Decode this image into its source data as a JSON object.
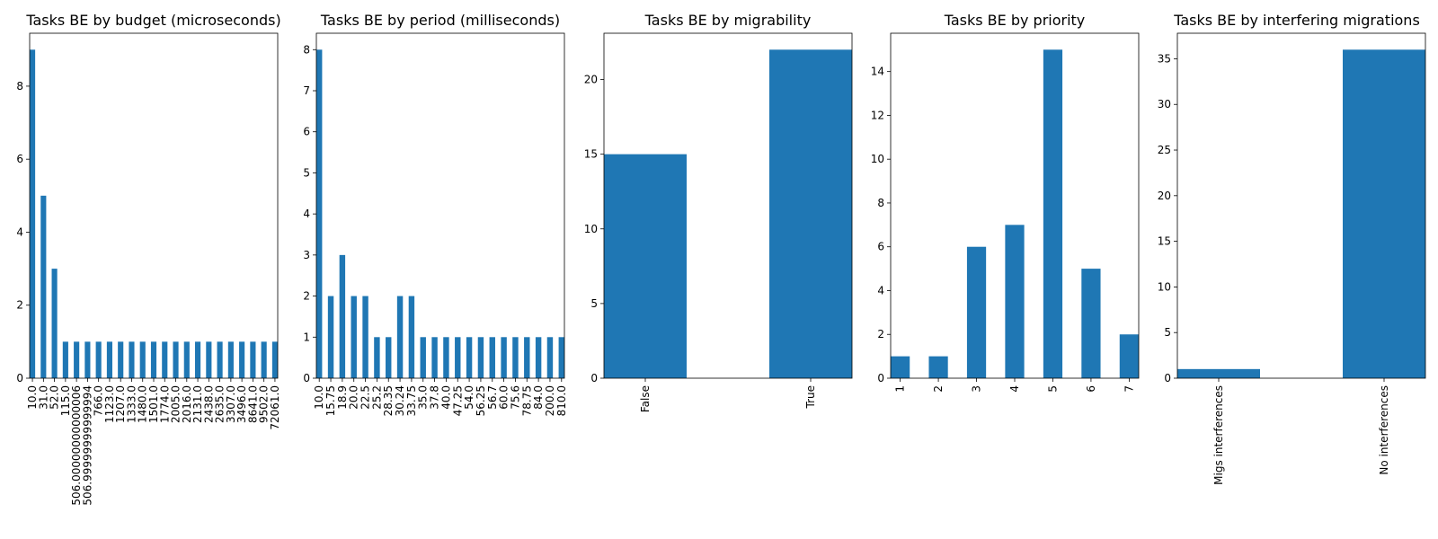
{
  "bar_color": "#1f77b4",
  "chart_data": [
    {
      "type": "bar",
      "title": "Tasks BE by budget (microseconds)",
      "categories": [
        "10.0",
        "31.0",
        "52.0",
        "115.0",
        "506.00000000000006",
        "506.99999999999994",
        "766.0",
        "1123.0",
        "1207.0",
        "1333.0",
        "1480.0",
        "1501.0",
        "1774.0",
        "2005.0",
        "2016.0",
        "2131.0",
        "2438.0",
        "2635.0",
        "3307.0",
        "3496.0",
        "8641.0",
        "9502.0",
        "72061.0"
      ],
      "values": [
        9,
        5,
        3,
        1,
        1,
        1,
        1,
        1,
        1,
        1,
        1,
        1,
        1,
        1,
        1,
        1,
        1,
        1,
        1,
        1,
        1,
        1,
        1
      ],
      "ylim": [
        0,
        9.45
      ],
      "yticks": [
        0,
        2,
        4,
        6,
        8
      ],
      "ytick_labels": [
        "0",
        "2",
        "4",
        "6",
        "8"
      ],
      "xlabel": "",
      "ylabel": ""
    },
    {
      "type": "bar",
      "title": "Tasks BE by period (milliseconds)",
      "categories": [
        "10.0",
        "15.75",
        "18.9",
        "20.0",
        "22.5",
        "25.2",
        "28.35",
        "30.24",
        "33.75",
        "35.0",
        "37.8",
        "40.0",
        "47.25",
        "54.0",
        "56.25",
        "56.7",
        "60.0",
        "75.6",
        "78.75",
        "84.0",
        "200.0",
        "810.0"
      ],
      "values": [
        8,
        2,
        3,
        2,
        2,
        1,
        1,
        2,
        2,
        1,
        1,
        1,
        1,
        1,
        1,
        1,
        1,
        1,
        1,
        1,
        1,
        1
      ],
      "ylim": [
        0,
        8.4
      ],
      "yticks": [
        0,
        1,
        2,
        3,
        4,
        5,
        6,
        7,
        8
      ],
      "ytick_labels": [
        "0",
        "1",
        "2",
        "3",
        "4",
        "5",
        "6",
        "7",
        "8"
      ],
      "xlabel": "",
      "ylabel": ""
    },
    {
      "type": "bar",
      "title": "Tasks BE by migrability",
      "categories": [
        "False",
        "True"
      ],
      "values": [
        15,
        22
      ],
      "ylim": [
        0,
        23.1
      ],
      "yticks": [
        0,
        5,
        10,
        15,
        20
      ],
      "ytick_labels": [
        "0",
        "5",
        "10",
        "15",
        "20"
      ],
      "xlabel": "",
      "ylabel": ""
    },
    {
      "type": "bar",
      "title": "Tasks BE by priority",
      "categories": [
        "1",
        "2",
        "3",
        "4",
        "5",
        "6",
        "7"
      ],
      "values": [
        1,
        1,
        6,
        7,
        15,
        5,
        2
      ],
      "ylim": [
        0,
        15.75
      ],
      "yticks": [
        0,
        2,
        4,
        6,
        8,
        10,
        12,
        14
      ],
      "ytick_labels": [
        "0",
        "2",
        "4",
        "6",
        "8",
        "10",
        "12",
        "14"
      ],
      "xlabel": "",
      "ylabel": ""
    },
    {
      "type": "bar",
      "title": "Tasks BE by interfering migrations",
      "categories": [
        "Migs interferences",
        "No interferences"
      ],
      "values": [
        1,
        36
      ],
      "ylim": [
        0,
        37.8
      ],
      "yticks": [
        0,
        5,
        10,
        15,
        20,
        25,
        30,
        35
      ],
      "ytick_labels": [
        "0",
        "5",
        "10",
        "15",
        "20",
        "25",
        "30",
        "35"
      ],
      "xlabel": "",
      "ylabel": ""
    }
  ]
}
